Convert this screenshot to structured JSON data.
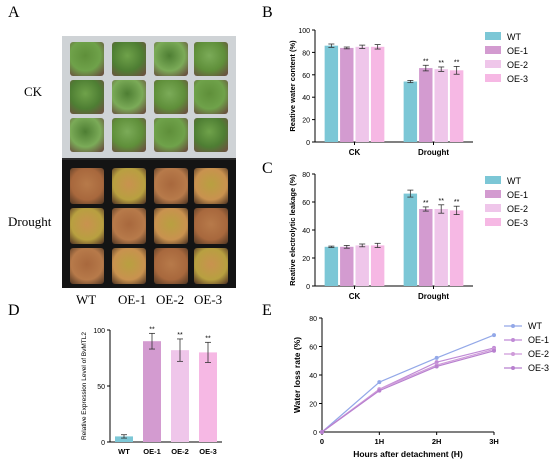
{
  "panels": {
    "a": "A",
    "b": "B",
    "c": "C",
    "d": "D",
    "e": "E"
  },
  "photo": {
    "row_labels": [
      "CK",
      "Drought"
    ],
    "genotype_labels": [
      "WT",
      "OE-1",
      "OE-2",
      "OE-3"
    ]
  },
  "colors": {
    "WT": "#7cc7d6",
    "OE-1": "#d39bd0",
    "OE-2": "#efc6ea",
    "OE-3": "#f6b8e4",
    "line_WT": "#93a8e8",
    "line_OE1": "#c08bd6",
    "line_OE2": "#cf9bd9",
    "line_OE3": "#b880cf"
  },
  "chart_data": [
    {
      "id": "B",
      "type": "bar",
      "ylabel": "Reative water content (%)",
      "xlabel": "",
      "categories": [
        "CK",
        "Drought"
      ],
      "ylim": [
        0,
        100
      ],
      "yticks": [
        0,
        20,
        40,
        60,
        80,
        100
      ],
      "legend": [
        "WT",
        "OE-1",
        "OE-2",
        "OE-3"
      ],
      "legend_position": "right",
      "series": [
        {
          "name": "WT",
          "values": [
            86,
            54
          ],
          "errors": [
            1.5,
            1.0
          ],
          "marks": [
            "",
            ""
          ]
        },
        {
          "name": "OE-1",
          "values": [
            84,
            66
          ],
          "errors": [
            0.8,
            2.5
          ],
          "marks": [
            "",
            "**"
          ]
        },
        {
          "name": "OE-2",
          "values": [
            85,
            65
          ],
          "errors": [
            1.5,
            2.0
          ],
          "marks": [
            "",
            "**"
          ]
        },
        {
          "name": "OE-3",
          "values": [
            85,
            64
          ],
          "errors": [
            2.0,
            3.5
          ],
          "marks": [
            "",
            "**"
          ]
        }
      ]
    },
    {
      "id": "C",
      "type": "bar",
      "ylabel": "Reative electrolytic leakage (%)",
      "xlabel": "",
      "categories": [
        "CK",
        "Drought"
      ],
      "ylim": [
        0,
        80
      ],
      "yticks": [
        0,
        20,
        40,
        60,
        80
      ],
      "legend": [
        "WT",
        "OE-1",
        "OE-2",
        "OE-3"
      ],
      "legend_position": "right",
      "series": [
        {
          "name": "WT",
          "values": [
            28,
            66
          ],
          "errors": [
            0.5,
            2.5
          ],
          "marks": [
            "",
            ""
          ]
        },
        {
          "name": "OE-1",
          "values": [
            28,
            55
          ],
          "errors": [
            1.0,
            1.5
          ],
          "marks": [
            "",
            "**"
          ]
        },
        {
          "name": "OE-2",
          "values": [
            29,
            55
          ],
          "errors": [
            1.0,
            3.0
          ],
          "marks": [
            "",
            "**"
          ]
        },
        {
          "name": "OE-3",
          "values": [
            29,
            54
          ],
          "errors": [
            1.5,
            3.0
          ],
          "marks": [
            "",
            "**"
          ]
        }
      ]
    },
    {
      "id": "D",
      "type": "bar",
      "ylabel": "Relative Expression Level of BvMTL2",
      "xlabel": "",
      "categories": [
        "WT",
        "OE-1",
        "OE-2",
        "OE-3"
      ],
      "ylim": [
        0,
        100
      ],
      "yticks": [
        0,
        50,
        100
      ],
      "values": [
        5,
        90,
        82,
        80
      ],
      "errors": [
        1.5,
        7.0,
        10.0,
        9.0
      ],
      "marks": [
        "",
        "**",
        "**",
        "**"
      ],
      "bar_colors": [
        "#7cc7d6",
        "#d39bd0",
        "#efc6ea",
        "#f6b8e4"
      ]
    },
    {
      "id": "E",
      "type": "line",
      "ylabel": "Water loss rate (%)",
      "xlabel": "Hours after detachment (H)",
      "categories": [
        "0",
        "1H",
        "2H",
        "3H"
      ],
      "ylim": [
        0,
        80
      ],
      "yticks": [
        0,
        20,
        40,
        60,
        80
      ],
      "legend": [
        "WT",
        "OE-1",
        "OE-2",
        "OE-3"
      ],
      "legend_position": "right",
      "series": [
        {
          "name": "WT",
          "values": [
            0,
            35,
            52,
            68
          ]
        },
        {
          "name": "OE-1",
          "values": [
            0,
            30,
            49,
            59
          ]
        },
        {
          "name": "OE-2",
          "values": [
            0,
            30,
            47,
            58
          ]
        },
        {
          "name": "OE-3",
          "values": [
            0,
            29,
            46,
            57
          ]
        }
      ]
    }
  ]
}
